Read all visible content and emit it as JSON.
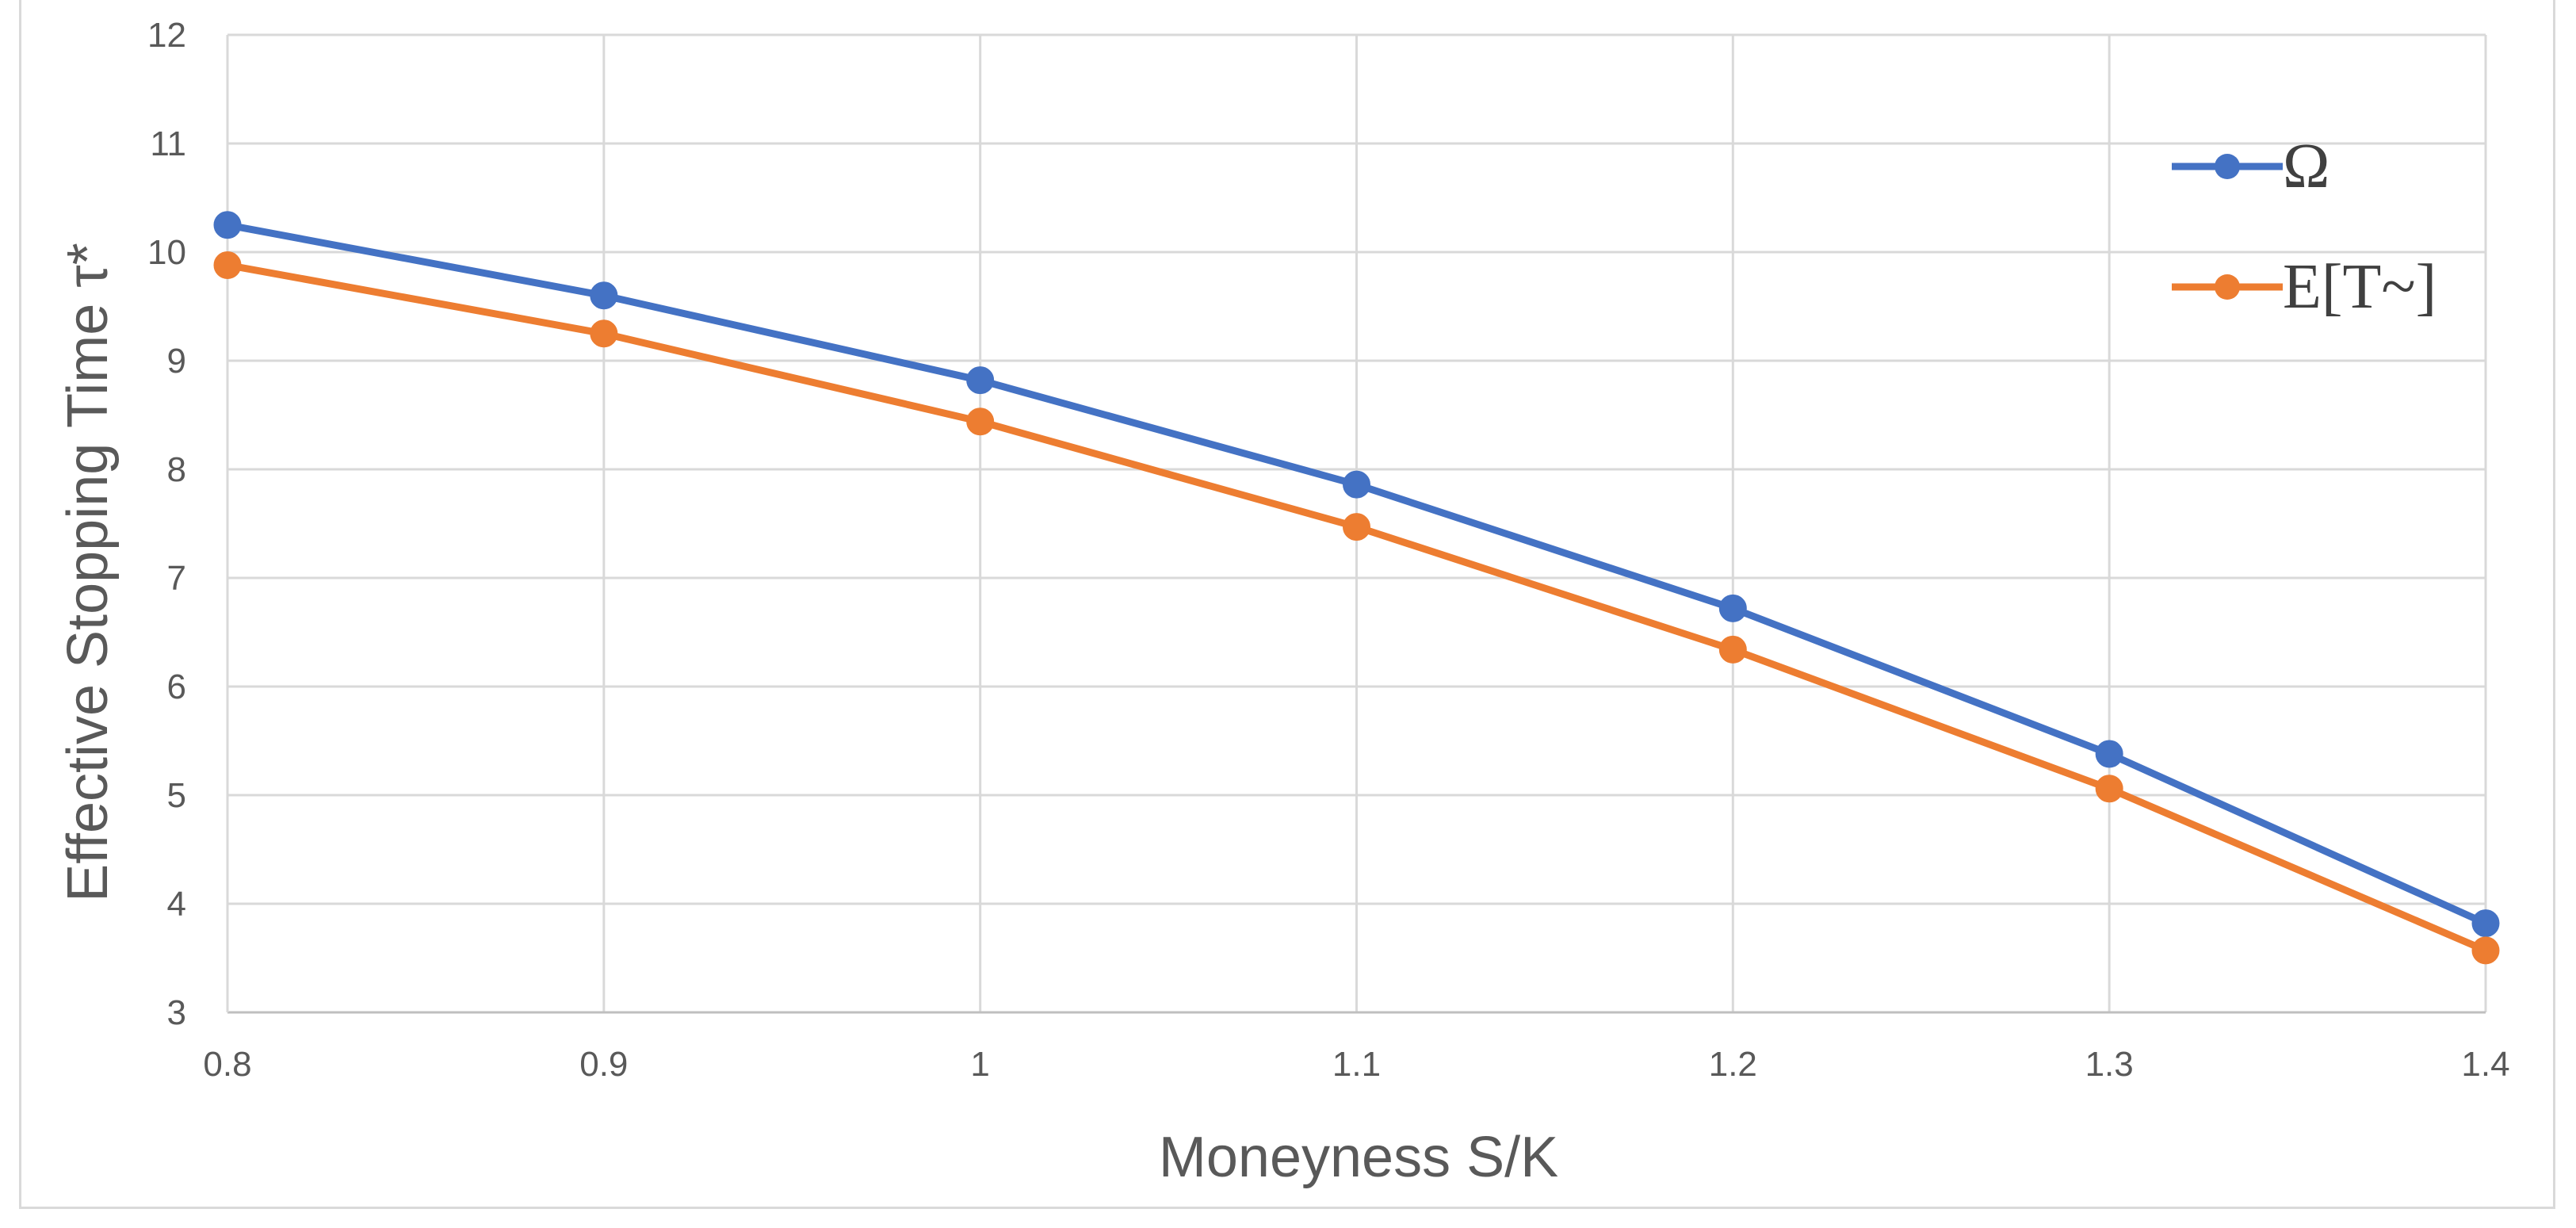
{
  "chart_data": {
    "type": "line",
    "title": "",
    "xlabel": "Moneyness S/K",
    "ylabel": "Effective Stopping Time τ*",
    "x": [
      0.8,
      0.9,
      1,
      1.1,
      1.2,
      1.3,
      1.4
    ],
    "x_tick_labels": [
      "0.8",
      "0.9",
      "1",
      "1.1",
      "1.2",
      "1.3",
      "1.4"
    ],
    "y_tick_labels": [
      "3",
      "4",
      "5",
      "6",
      "7",
      "8",
      "9",
      "10",
      "11",
      "12"
    ],
    "xlim": [
      0.8,
      1.4
    ],
    "ylim": [
      3,
      12
    ],
    "grid": true,
    "legend_position": "top-right",
    "series": [
      {
        "name": "Ω",
        "color": "#4472C4",
        "values": [
          10.25,
          9.6,
          8.82,
          7.86,
          6.72,
          5.38,
          3.82
        ]
      },
      {
        "name": "E[T~]",
        "color": "#ED7D31",
        "values": [
          9.88,
          9.25,
          8.44,
          7.47,
          6.34,
          5.06,
          3.57
        ]
      }
    ]
  }
}
